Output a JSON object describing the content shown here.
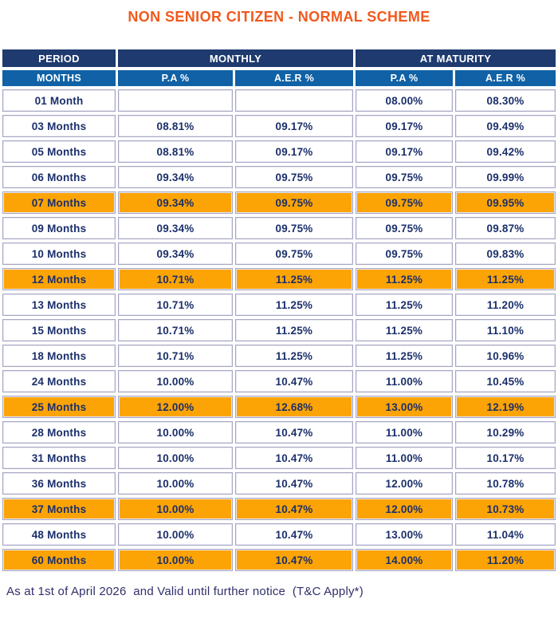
{
  "title": "NON SENIOR CITIZEN - NORMAL SCHEME",
  "colors": {
    "title_orange": "#F1591D",
    "highlight_row_orange": "#FCA405",
    "header_group_navy": "#1E3A6E",
    "header_sub_blue": "#1061A5",
    "cell_text_navy": "#1B2F6B",
    "cell_border": "#A6A6C4",
    "footer_text": "#312F6B"
  },
  "table": {
    "header_groups": [
      {
        "label": "PERIOD"
      },
      {
        "label": "MONTHLY"
      },
      {
        "label": "AT MATURITY"
      }
    ],
    "sub_headers": [
      "MONTHS",
      "P.A %",
      "A.E.R %",
      "P.A %",
      "A.E.R %"
    ],
    "rows": [
      {
        "period": "01 Month",
        "monthly_pa": "",
        "monthly_aer": "",
        "maturity_pa": "08.00%",
        "maturity_aer": "08.30%",
        "highlighted": false
      },
      {
        "period": "03 Months",
        "monthly_pa": "08.81%",
        "monthly_aer": "09.17%",
        "maturity_pa": "09.17%",
        "maturity_aer": "09.49%",
        "highlighted": false
      },
      {
        "period": "05 Months",
        "monthly_pa": "08.81%",
        "monthly_aer": "09.17%",
        "maturity_pa": "09.17%",
        "maturity_aer": "09.42%",
        "highlighted": false
      },
      {
        "period": "06 Months",
        "monthly_pa": "09.34%",
        "monthly_aer": "09.75%",
        "maturity_pa": "09.75%",
        "maturity_aer": "09.99%",
        "highlighted": false
      },
      {
        "period": "07 Months",
        "monthly_pa": "09.34%",
        "monthly_aer": "09.75%",
        "maturity_pa": "09.75%",
        "maturity_aer": "09.95%",
        "highlighted": true
      },
      {
        "period": "09 Months",
        "monthly_pa": "09.34%",
        "monthly_aer": "09.75%",
        "maturity_pa": "09.75%",
        "maturity_aer": "09.87%",
        "highlighted": false
      },
      {
        "period": "10 Months",
        "monthly_pa": "09.34%",
        "monthly_aer": "09.75%",
        "maturity_pa": "09.75%",
        "maturity_aer": "09.83%",
        "highlighted": false
      },
      {
        "period": "12 Months",
        "monthly_pa": "10.71%",
        "monthly_aer": "11.25%",
        "maturity_pa": "11.25%",
        "maturity_aer": "11.25%",
        "highlighted": true
      },
      {
        "period": "13 Months",
        "monthly_pa": "10.71%",
        "monthly_aer": "11.25%",
        "maturity_pa": "11.25%",
        "maturity_aer": "11.20%",
        "highlighted": false
      },
      {
        "period": "15 Months",
        "monthly_pa": "10.71%",
        "monthly_aer": "11.25%",
        "maturity_pa": "11.25%",
        "maturity_aer": "11.10%",
        "highlighted": false
      },
      {
        "period": "18 Months",
        "monthly_pa": "10.71%",
        "monthly_aer": "11.25%",
        "maturity_pa": "11.25%",
        "maturity_aer": "10.96%",
        "highlighted": false
      },
      {
        "period": "24 Months",
        "monthly_pa": "10.00%",
        "monthly_aer": "10.47%",
        "maturity_pa": "11.00%",
        "maturity_aer": "10.45%",
        "highlighted": false
      },
      {
        "period": "25 Months",
        "monthly_pa": "12.00%",
        "monthly_aer": "12.68%",
        "maturity_pa": "13.00%",
        "maturity_aer": "12.19%",
        "highlighted": true
      },
      {
        "period": "28 Months",
        "monthly_pa": "10.00%",
        "monthly_aer": "10.47%",
        "maturity_pa": "11.00%",
        "maturity_aer": "10.29%",
        "highlighted": false
      },
      {
        "period": "31 Months",
        "monthly_pa": "10.00%",
        "monthly_aer": "10.47%",
        "maturity_pa": "11.00%",
        "maturity_aer": "10.17%",
        "highlighted": false
      },
      {
        "period": "36 Months",
        "monthly_pa": "10.00%",
        "monthly_aer": "10.47%",
        "maturity_pa": "12.00%",
        "maturity_aer": "10.78%",
        "highlighted": false
      },
      {
        "period": "37 Months",
        "monthly_pa": "10.00%",
        "monthly_aer": "10.47%",
        "maturity_pa": "12.00%",
        "maturity_aer": "10.73%",
        "highlighted": true
      },
      {
        "period": "48 Months",
        "monthly_pa": "10.00%",
        "monthly_aer": "10.47%",
        "maturity_pa": "13.00%",
        "maturity_aer": "11.04%",
        "highlighted": false
      },
      {
        "period": "60 Months",
        "monthly_pa": "10.00%",
        "monthly_aer": "10.47%",
        "maturity_pa": "14.00%",
        "maturity_aer": "11.20%",
        "highlighted": true
      }
    ]
  },
  "footer": {
    "note": "As at 1st of April 2026  and Valid until further notice  (T&C Apply*)"
  }
}
